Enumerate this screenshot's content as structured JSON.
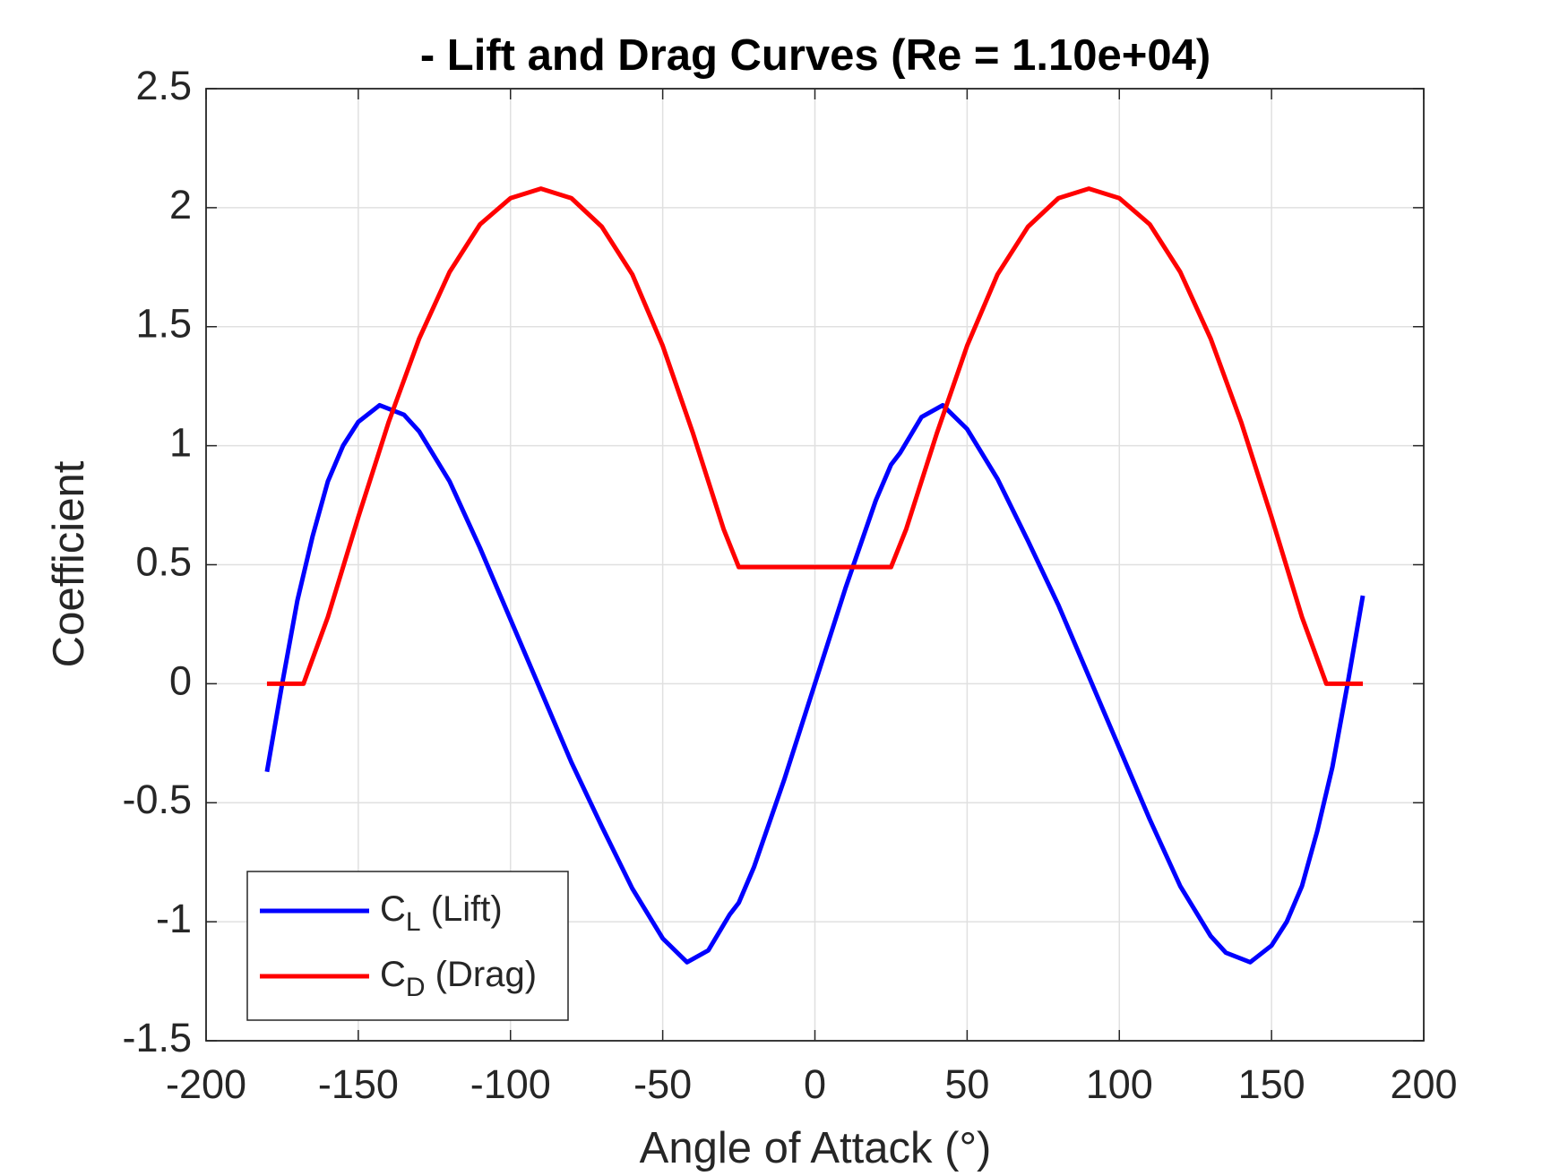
{
  "chart_data": {
    "type": "line",
    "title": "- Lift and Drag Curves (Re = 1.10e+04)",
    "x_label": "Angle of Attack (°)",
    "y_label": "Coefficient",
    "xlim": [
      -200,
      200
    ],
    "xticks": [
      -200,
      -150,
      -100,
      -50,
      0,
      50,
      100,
      150,
      200
    ],
    "ylim": [
      -1.5,
      2.5
    ],
    "yticks": [
      -1.5,
      -1,
      -0.5,
      0,
      0.5,
      1,
      1.5,
      2,
      2.5
    ],
    "grid": true,
    "legend": "lower left",
    "series": [
      {
        "name": "CL (Lift)",
        "color": "#0000ff",
        "x": [
          -180,
          -175,
          -170,
          -165,
          -160,
          -155,
          -150,
          -143,
          -135,
          -130,
          -120,
          -110,
          -100,
          -90,
          -80,
          -70,
          -60,
          -50,
          -42,
          -35,
          -28,
          -25,
          -20,
          -10,
          0,
          10,
          20,
          25,
          28,
          35,
          42,
          50,
          60,
          70,
          80,
          90,
          100,
          110,
          120,
          130,
          135,
          143,
          150,
          155,
          160,
          165,
          170,
          175,
          180
        ],
        "values": [
          -0.37,
          0,
          0.35,
          0.62,
          0.85,
          1.0,
          1.1,
          1.17,
          1.13,
          1.06,
          0.85,
          0.57,
          0.27,
          -0.03,
          -0.33,
          -0.6,
          -0.86,
          -1.07,
          -1.17,
          -1.12,
          -0.97,
          -0.92,
          -0.77,
          -0.4,
          0,
          0.4,
          0.77,
          0.92,
          0.97,
          1.12,
          1.17,
          1.07,
          0.86,
          0.6,
          0.33,
          0.03,
          -0.27,
          -0.57,
          -0.85,
          -1.06,
          -1.13,
          -1.17,
          -1.1,
          -1.0,
          -0.85,
          -0.62,
          -0.35,
          0,
          0.37
        ]
      },
      {
        "name": "CD (Drag)",
        "color": "#ff0000",
        "x": [
          -180,
          -168,
          -160,
          -150,
          -140,
          -130,
          -120,
          -110,
          -100,
          -90,
          -80,
          -70,
          -60,
          -50,
          -40,
          -30,
          -25,
          25,
          30,
          40,
          50,
          60,
          70,
          80,
          90,
          100,
          110,
          120,
          130,
          140,
          150,
          160,
          168,
          180
        ],
        "values": [
          0,
          0,
          0.28,
          0.7,
          1.1,
          1.45,
          1.73,
          1.93,
          2.04,
          2.08,
          2.04,
          1.92,
          1.72,
          1.42,
          1.05,
          0.65,
          0.49,
          0.49,
          0.65,
          1.05,
          1.42,
          1.72,
          1.92,
          2.04,
          2.08,
          2.04,
          1.93,
          1.73,
          1.45,
          1.1,
          0.7,
          0.28,
          0,
          0
        ]
      }
    ]
  }
}
